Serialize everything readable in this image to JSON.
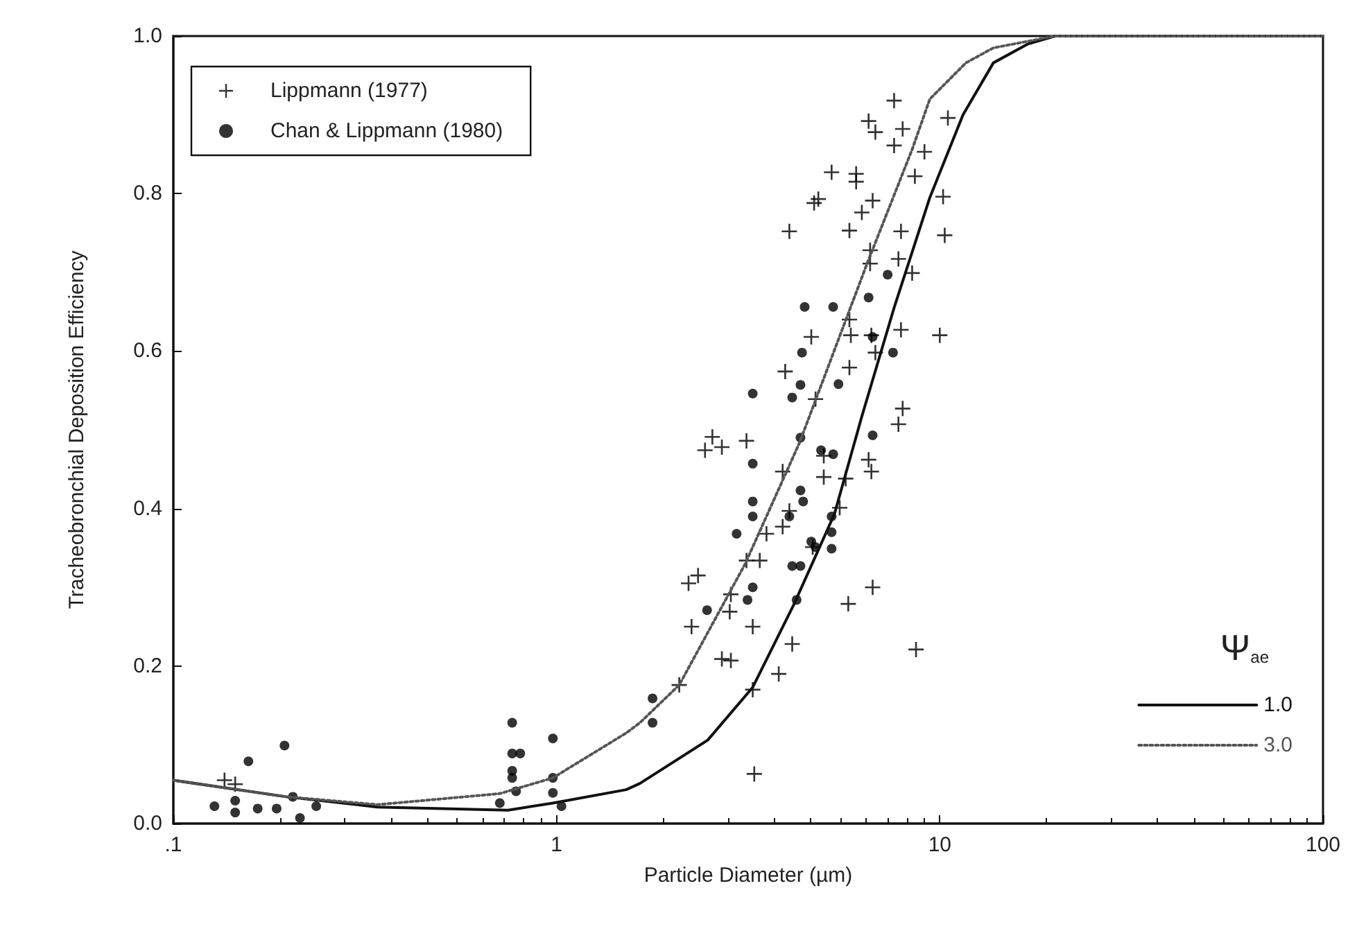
{
  "chart_data": {
    "type": "scatter",
    "xlabel": "Particle Diameter (µm)",
    "ylabel": "Tracheobronchial Deposition Efficiency",
    "log": "x",
    "grid": false,
    "legend": "top left",
    "legend_title": "Ψ$_{ae}$",
    "xlim": [
      0.1,
      100
    ],
    "xticks": [
      {
        "value": 0.1,
        "label": ".1"
      },
      1,
      10,
      100
    ],
    "ylim": [
      0,
      1
    ],
    "yticks": [
      {
        "value": 0,
        "label": "0.0"
      },
      0.2,
      0.4,
      0.6,
      0.8,
      {
        "value": 1,
        "label": "1.0"
      }
    ],
    "series": [
      {
        "name": "Lippmann (1977)",
        "marker": "cross",
        "color": "#000000",
        "x": [
          7.6,
          6.52,
          6.79,
          8.0,
          7.6,
          9.12,
          5.22,
          6.05,
          6.05,
          8.61,
          10.5,
          10.2,
          10.3,
          4.82,
          4.7,
          6.68,
          6.26,
          4.05,
          5.81,
          7.92,
          6.58,
          6.58,
          7.8,
          8.47,
          5.81,
          4.62,
          5.86,
          6.63,
          7.92,
          10.0,
          3.95,
          5.81,
          4.74,
          6.79,
          8.0,
          7.8,
          3.13,
          2.55,
          2.44,
          2.7,
          3.89,
          4.98,
          4.98,
          5.68,
          6.52,
          6.63,
          5.48,
          4.05,
          3.89,
          3.53,
          3.13,
          3.39,
          4.66,
          2.21,
          2.34,
          2.85,
          2.83,
          2.25,
          3.25,
          2.7,
          2.85,
          4.12,
          3.8,
          2.09,
          3.25,
          6.68,
          5.77,
          8.67,
          3.28,
          0.136,
          0.145
        ],
        "values": [
          0.918,
          0.892,
          0.878,
          0.882,
          0.861,
          0.853,
          0.827,
          0.825,
          0.815,
          0.822,
          0.896,
          0.796,
          0.747,
          0.793,
          0.788,
          0.791,
          0.776,
          0.752,
          0.753,
          0.752,
          0.728,
          0.711,
          0.717,
          0.699,
          0.64,
          0.618,
          0.62,
          0.62,
          0.627,
          0.62,
          0.574,
          0.579,
          0.539,
          0.598,
          0.527,
          0.507,
          0.486,
          0.491,
          0.474,
          0.478,
          0.447,
          0.467,
          0.44,
          0.438,
          0.462,
          0.447,
          0.401,
          0.397,
          0.377,
          0.368,
          0.334,
          0.334,
          0.351,
          0.305,
          0.315,
          0.291,
          0.269,
          0.25,
          0.25,
          0.209,
          0.207,
          0.228,
          0.19,
          0.176,
          0.17,
          0.3,
          0.279,
          0.221,
          0.063,
          0.055,
          0.05
        ]
      },
      {
        "name": "Chan & Lippmann (1980)",
        "marker": "circle",
        "color": "#000000",
        "x": [
          7.31,
          6.52,
          4.44,
          5.27,
          6.68,
          4.37,
          7.55,
          4.33,
          5.44,
          4.12,
          3.25,
          4.33,
          6.68,
          4.9,
          5.27,
          3.25,
          4.33,
          4.4,
          3.25,
          3.25,
          4.05,
          5.22,
          2.95,
          5.22,
          4.62,
          4.74,
          5.22,
          4.12,
          4.33,
          3.25,
          3.15,
          4.23,
          2.47,
          1.78,
          1.78,
          0.128,
          0.145,
          0.145,
          0.166,
          0.186,
          0.157,
          0.195,
          0.205,
          0.214,
          0.236,
          0.766,
          0.766,
          0.804,
          0.766,
          0.766,
          0.784,
          0.711,
          0.978,
          0.978,
          0.978,
          1.03
        ],
        "values": [
          0.697,
          0.668,
          0.656,
          0.656,
          0.618,
          0.598,
          0.598,
          0.557,
          0.558,
          0.541,
          0.546,
          0.49,
          0.493,
          0.474,
          0.469,
          0.457,
          0.423,
          0.409,
          0.409,
          0.39,
          0.39,
          0.39,
          0.368,
          0.37,
          0.358,
          0.351,
          0.349,
          0.327,
          0.327,
          0.3,
          0.284,
          0.284,
          0.271,
          0.159,
          0.128,
          0.022,
          0.029,
          0.014,
          0.019,
          0.019,
          0.079,
          0.099,
          0.034,
          0.007,
          0.022,
          0.128,
          0.089,
          0.089,
          0.067,
          0.058,
          0.041,
          0.026,
          0.108,
          0.058,
          0.039,
          0.022
        ]
      },
      {
        "name": "1.0",
        "type": "line",
        "line_style": "solid",
        "color": "#111111",
        "x": [
          0.1,
          0.197,
          0.341,
          0.747,
          0.978,
          1.52,
          1.65,
          2.48,
          3.25,
          4.16,
          5.31,
          6.26,
          7.6,
          9.42,
          11.5,
          13.8,
          17,
          20,
          100
        ],
        "values": [
          0.055,
          0.034,
          0.021,
          0.017,
          0.026,
          0.043,
          0.051,
          0.106,
          0.173,
          0.278,
          0.393,
          0.517,
          0.655,
          0.795,
          0.9,
          0.966,
          0.99,
          1.0,
          1.0
        ]
      },
      {
        "name": "3.0",
        "type": "line",
        "line_style": "dotted",
        "color": "#555555",
        "x": [
          0.1,
          0.197,
          0.341,
          0.711,
          0.978,
          1.52,
          1.65,
          2.09,
          3.1,
          4.3,
          6.46,
          8.47,
          9.42,
          11.7,
          13.8,
          20,
          100
        ],
        "values": [
          0.055,
          0.034,
          0.024,
          0.038,
          0.058,
          0.115,
          0.128,
          0.176,
          0.329,
          0.483,
          0.711,
          0.856,
          0.92,
          0.966,
          0.985,
          1.0,
          1.0
        ]
      }
    ]
  }
}
